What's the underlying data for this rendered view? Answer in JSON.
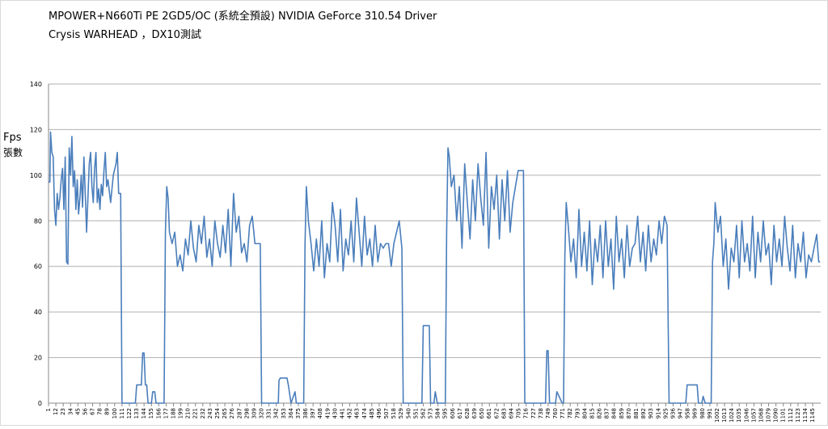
{
  "chart_data": {
    "type": "line",
    "title": "MPOWER+N660Ti PE 2GD5/OC (系統全預設) NVIDIA GeForce 310.54 Driver",
    "subtitle": "Crysis WARHEAD ，DX10測試",
    "ylabel": [
      "Fps",
      "張數"
    ],
    "grid": true,
    "xlim": [
      1,
      1157
    ],
    "ylim": [
      0,
      140
    ],
    "yticks": [
      0,
      20,
      40,
      60,
      80,
      100,
      120,
      140
    ],
    "xticks": [
      1,
      12,
      23,
      34,
      45,
      56,
      67,
      78,
      89,
      100,
      111,
      122,
      133,
      144,
      155,
      166,
      177,
      188,
      199,
      210,
      221,
      232,
      243,
      254,
      265,
      276,
      287,
      298,
      309,
      320,
      331,
      342,
      353,
      364,
      375,
      386,
      397,
      408,
      419,
      430,
      441,
      452,
      463,
      474,
      485,
      496,
      507,
      518,
      529,
      540,
      551,
      562,
      573,
      584,
      595,
      606,
      617,
      628,
      639,
      650,
      661,
      672,
      683,
      694,
      705,
      716,
      727,
      738,
      749,
      760,
      771,
      782,
      793,
      804,
      815,
      826,
      837,
      848,
      859,
      870,
      881,
      892,
      903,
      914,
      925,
      936,
      947,
      958,
      969,
      980,
      991,
      1002,
      1013,
      1024,
      1035,
      1046,
      1057,
      1068,
      1079,
      1090,
      1101,
      1112,
      1123,
      1134,
      1145
    ],
    "x": [
      1,
      3,
      4,
      6,
      8,
      10,
      12,
      14,
      16,
      18,
      20,
      22,
      24,
      26,
      28,
      30,
      32,
      34,
      36,
      38,
      40,
      42,
      44,
      46,
      48,
      50,
      52,
      54,
      56,
      58,
      60,
      62,
      64,
      66,
      68,
      70,
      72,
      74,
      76,
      78,
      80,
      82,
      84,
      86,
      88,
      90,
      94,
      98,
      102,
      104,
      106,
      109,
      111,
      131,
      133,
      140,
      142,
      144,
      146,
      148,
      150,
      155,
      157,
      160,
      162,
      174,
      176,
      178,
      180,
      182,
      186,
      190,
      194,
      198,
      202,
      206,
      210,
      214,
      218,
      222,
      226,
      230,
      234,
      238,
      242,
      246,
      250,
      254,
      258,
      262,
      266,
      270,
      274,
      278,
      282,
      286,
      290,
      294,
      298,
      302,
      306,
      310,
      314,
      318,
      320,
      345,
      346,
      348,
      358,
      360,
      364,
      370,
      372,
      383,
      385,
      387,
      390,
      394,
      398,
      402,
      406,
      410,
      414,
      418,
      422,
      426,
      430,
      434,
      438,
      442,
      446,
      450,
      454,
      458,
      462,
      466,
      470,
      474,
      478,
      482,
      486,
      490,
      494,
      498,
      502,
      506,
      510,
      514,
      518,
      522,
      526,
      530,
      532,
      560,
      562,
      571,
      573,
      578,
      580,
      583,
      595,
      597,
      599,
      601,
      604,
      608,
      612,
      616,
      620,
      624,
      628,
      632,
      636,
      640,
      644,
      648,
      652,
      656,
      660,
      664,
      668,
      672,
      676,
      680,
      684,
      688,
      692,
      696,
      700,
      704,
      708,
      712,
      714,
      745,
      747,
      749,
      751,
      760,
      762,
      770,
      772,
      774,
      776,
      779,
      783,
      787,
      791,
      795,
      799,
      803,
      807,
      811,
      815,
      819,
      823,
      827,
      831,
      835,
      839,
      843,
      847,
      851,
      855,
      859,
      863,
      867,
      871,
      875,
      879,
      883,
      887,
      891,
      895,
      899,
      903,
      907,
      911,
      915,
      919,
      923,
      927,
      930,
      955,
      957,
      972,
      974,
      979,
      981,
      984,
      993,
      995,
      997,
      999,
      1003,
      1007,
      1011,
      1015,
      1019,
      1023,
      1027,
      1031,
      1035,
      1039,
      1043,
      1047,
      1051,
      1055,
      1059,
      1063,
      1067,
      1071,
      1075,
      1079,
      1083,
      1087,
      1091,
      1095,
      1099,
      1103,
      1107,
      1111,
      1115,
      1119,
      1123,
      1127,
      1131,
      1135,
      1139,
      1143,
      1147,
      1151,
      1154,
      1156
    ],
    "series": [
      {
        "color": "#4a7ebb",
        "values": [
          97,
          97,
          119,
          110,
          108,
          85,
          78,
          92,
          85,
          90,
          98,
          103,
          85,
          108,
          62,
          61,
          112,
          100,
          117,
          95,
          102,
          85,
          98,
          83,
          90,
          100,
          86,
          108,
          92,
          75,
          90,
          105,
          110,
          95,
          88,
          103,
          110,
          88,
          94,
          85,
          96,
          91,
          102,
          110,
          95,
          98,
          88,
          100,
          105,
          110,
          92,
          92,
          0,
          0,
          8,
          8,
          22,
          22,
          8,
          8,
          0,
          0,
          5,
          5,
          0,
          0,
          75,
          95,
          90,
          75,
          70,
          75,
          60,
          65,
          58,
          72,
          65,
          80,
          68,
          62,
          78,
          70,
          82,
          64,
          72,
          60,
          80,
          70,
          64,
          78,
          66,
          85,
          60,
          92,
          75,
          82,
          66,
          70,
          62,
          78,
          82,
          70,
          70,
          70,
          0,
          0,
          10,
          11,
          11,
          8,
          0,
          5,
          0,
          0,
          70,
          95,
          80,
          70,
          58,
          72,
          60,
          80,
          55,
          70,
          62,
          88,
          78,
          62,
          85,
          58,
          72,
          65,
          80,
          62,
          90,
          75,
          60,
          82,
          65,
          72,
          60,
          78,
          62,
          70,
          68,
          70,
          70,
          60,
          70,
          75,
          80,
          68,
          0,
          0,
          34,
          34,
          0,
          0,
          5,
          0,
          0,
          75,
          112,
          108,
          95,
          100,
          80,
          95,
          68,
          105,
          88,
          72,
          98,
          80,
          105,
          90,
          78,
          110,
          68,
          95,
          85,
          100,
          72,
          98,
          80,
          102,
          75,
          88,
          95,
          102,
          102,
          102,
          0,
          0,
          23,
          23,
          0,
          0,
          5,
          0,
          0,
          65,
          88,
          78,
          62,
          72,
          55,
          85,
          60,
          75,
          58,
          80,
          52,
          72,
          62,
          78,
          55,
          80,
          60,
          72,
          50,
          82,
          62,
          72,
          55,
          78,
          60,
          68,
          70,
          82,
          62,
          75,
          58,
          78,
          62,
          72,
          65,
          80,
          70,
          82,
          78,
          0,
          0,
          8,
          8,
          0,
          0,
          3,
          0,
          0,
          62,
          70,
          88,
          75,
          82,
          60,
          72,
          50,
          68,
          62,
          78,
          55,
          80,
          62,
          70,
          58,
          82,
          55,
          75,
          62,
          80,
          65,
          70,
          52,
          78,
          62,
          72,
          60,
          82,
          68,
          58,
          78,
          55,
          70,
          62,
          75,
          55,
          65,
          62,
          68,
          74,
          62,
          62
        ]
      }
    ]
  }
}
